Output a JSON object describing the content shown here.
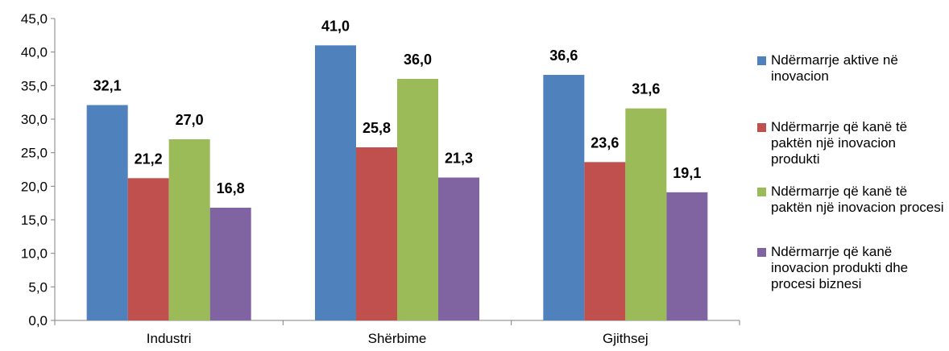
{
  "chart_data": {
    "type": "bar",
    "categories": [
      "Industri",
      "Shërbime",
      "Gjithsej"
    ],
    "series": [
      {
        "name": "Ndërmarrje aktive në inovacion",
        "color": "#4F81BD",
        "values": [
          32.1,
          41.0,
          36.6
        ]
      },
      {
        "name": "Ndërmarrje që kanë të paktën një inovacion produkti",
        "color": "#C0504D",
        "values": [
          21.2,
          25.8,
          23.6
        ]
      },
      {
        "name": "Ndërmarrje që kanë të paktën një inovacion procesi",
        "color": "#9BBB59",
        "values": [
          27.0,
          36.0,
          31.6
        ]
      },
      {
        "name": "Ndërmarrje që kanë inovacion produkti dhe procesi biznesi",
        "color": "#8064A2",
        "values": [
          16.8,
          21.3,
          19.1
        ]
      }
    ],
    "data_labels": [
      [
        "32,1",
        "41,0",
        "36,6"
      ],
      [
        "21,2",
        "25,8",
        "23,6"
      ],
      [
        "27,0",
        "36,0",
        "31,6"
      ],
      [
        "16,8",
        "21,3",
        "19,1"
      ]
    ],
    "yticks": [
      "0,0",
      "5,0",
      "10,0",
      "15,0",
      "20,0",
      "25,0",
      "30,0",
      "35,0",
      "40,0",
      "45,0"
    ],
    "ylim": [
      0,
      45
    ],
    "grid": false,
    "legend_position": "right"
  }
}
